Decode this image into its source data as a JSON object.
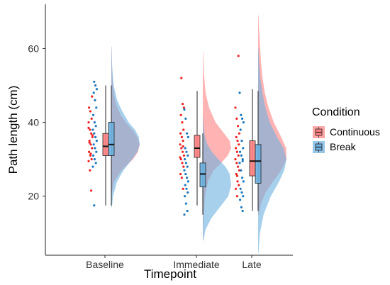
{
  "chart_data": {
    "type": "raincloud",
    "title": "",
    "xlabel": "Timepoint",
    "ylabel": "Path length (cm)",
    "ylim": [
      4,
      72
    ],
    "yticks": [
      20,
      40,
      60
    ],
    "categories": [
      "Baseline",
      "Immediate",
      "Late"
    ],
    "legend": {
      "title": "Condition",
      "position": "right"
    },
    "grid": false,
    "series": [
      {
        "name": "Continuous",
        "color": "#F8766D",
        "fill": "#FF8080",
        "box": [
          {
            "q1": 31,
            "median": 33.5,
            "q3": 37,
            "whisker_low": 17.5,
            "whisker_high": 50
          },
          {
            "q1": 30.5,
            "median": 33,
            "q3": 36.5,
            "whisker_low": 17.5,
            "whisker_high": 48.5
          },
          {
            "q1": 25.5,
            "median": 29.5,
            "q3": 35,
            "whisker_low": 16,
            "whisker_high": 49
          }
        ],
        "density": [
          {
            "y": [
              21,
              24,
              27,
              30,
              32,
              34,
              36,
              38,
              40,
              42,
              45,
              48,
              52,
              56,
              60.5
            ],
            "d": [
              0.02,
              0.1,
              0.35,
              0.75,
              0.92,
              0.98,
              0.9,
              0.72,
              0.5,
              0.32,
              0.16,
              0.08,
              0.04,
              0.02,
              0.01
            ]
          },
          {
            "y": [
              8,
              14,
              20,
              24,
              27,
              29,
              31,
              33,
              35,
              37,
              40,
              44,
              48,
              53,
              59
            ],
            "d": [
              0.01,
              0.03,
              0.08,
              0.18,
              0.38,
              0.65,
              0.88,
              1.0,
              0.95,
              0.75,
              0.45,
              0.22,
              0.1,
              0.04,
              0.01
            ]
          },
          {
            "y": [
              15,
              18,
              21,
              24,
              27,
              30,
              33,
              36,
              40,
              44,
              48,
              52,
              56,
              61,
              66,
              69
            ],
            "d": [
              0.02,
              0.08,
              0.2,
              0.4,
              0.62,
              0.76,
              0.75,
              0.62,
              0.42,
              0.28,
              0.18,
              0.12,
              0.08,
              0.05,
              0.02,
              0.01
            ]
          }
        ],
        "points": [
          [
            29.5,
            30,
            31,
            32,
            33,
            34,
            35,
            36,
            37,
            38,
            40,
            41,
            43,
            44,
            47,
            31.5,
            34.5,
            36.5,
            21.5,
            27,
            38.5
          ],
          [
            22,
            25,
            26,
            28,
            29,
            30,
            31,
            32,
            33,
            34,
            35,
            36,
            37,
            38,
            40,
            42,
            44,
            45,
            52,
            30.5,
            33.5
          ],
          [
            20,
            22,
            23,
            24,
            26,
            27,
            28,
            29,
            30,
            31,
            32,
            33,
            34,
            35,
            36,
            37,
            39,
            41,
            44,
            58,
            25.5
          ]
        ]
      },
      {
        "name": "Break",
        "color": "#3A8DC8",
        "fill": "#6CB0E0",
        "box": [
          {
            "q1": 31,
            "median": 34,
            "q3": 40,
            "whisker_low": 17.5,
            "whisker_high": 50
          },
          {
            "q1": 22.5,
            "median": 26,
            "q3": 29,
            "whisker_low": 15,
            "whisker_high": 37
          },
          {
            "q1": 23.5,
            "median": 29.5,
            "q3": 34,
            "whisker_low": 16,
            "whisker_high": 48.5
          }
        ],
        "density": [
          {
            "y": [
              17,
              20,
              24,
              27,
              30,
              32,
              34,
              36,
              38,
              40,
              43,
              46,
              50,
              55,
              60.5
            ],
            "d": [
              0.02,
              0.06,
              0.2,
              0.42,
              0.72,
              0.9,
              0.98,
              0.95,
              0.82,
              0.6,
              0.38,
              0.2,
              0.08,
              0.03,
              0.01
            ]
          },
          {
            "y": [
              8,
              11,
              14,
              17,
              20,
              23,
              26,
              28,
              30,
              32,
              34,
              36,
              38,
              40,
              42
            ],
            "d": [
              0.02,
              0.1,
              0.3,
              0.6,
              0.9,
              1.0,
              0.95,
              0.8,
              0.55,
              0.32,
              0.16,
              0.08,
              0.04,
              0.02,
              0.01
            ]
          },
          {
            "y": [
              4.5,
              10,
              15,
              20,
              24,
              27,
              30,
              33,
              36,
              40,
              44,
              48,
              52,
              56,
              60
            ],
            "d": [
              0.01,
              0.05,
              0.15,
              0.35,
              0.58,
              0.72,
              0.78,
              0.7,
              0.52,
              0.32,
              0.2,
              0.12,
              0.06,
              0.03,
              0.01
            ]
          }
        ],
        "points": [
          [
            17.5,
            28,
            29,
            30,
            31,
            32,
            33,
            34,
            35,
            36,
            37,
            38,
            39,
            40,
            42,
            44,
            46,
            48,
            49,
            50,
            51
          ],
          [
            15,
            16,
            18,
            20,
            21,
            22,
            23,
            24,
            25,
            26,
            27,
            28,
            29,
            30,
            31,
            32,
            33,
            36,
            37,
            41,
            43.5
          ],
          [
            16,
            17,
            19,
            20,
            21,
            22,
            24,
            25,
            27,
            29,
            30,
            31,
            32,
            33,
            35,
            38,
            40,
            41,
            42,
            48,
            29.5
          ]
        ]
      }
    ]
  }
}
